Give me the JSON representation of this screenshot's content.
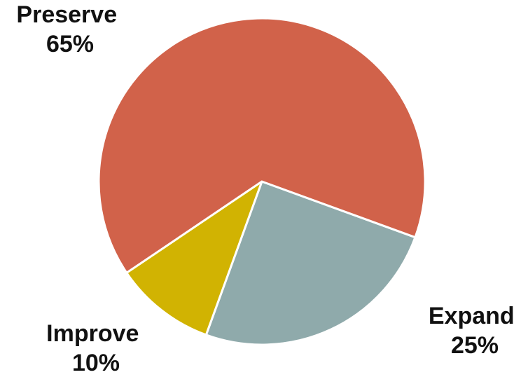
{
  "chart_data": {
    "type": "pie",
    "slices": [
      {
        "key": "preserve",
        "label": "Preserve",
        "value_text": "65%",
        "value": 65,
        "color": "#D1624A"
      },
      {
        "key": "expand",
        "label": "Expand",
        "value_text": "25%",
        "value": 25,
        "color": "#8FAAAB"
      },
      {
        "key": "improve",
        "label": "Improve",
        "value_text": "10%",
        "value": 10,
        "color": "#D1B302"
      }
    ],
    "legend": "none",
    "labels": "outside"
  }
}
